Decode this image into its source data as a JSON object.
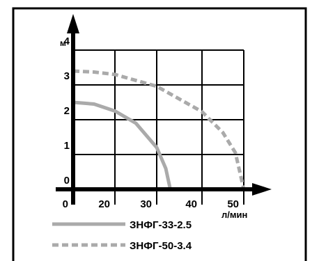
{
  "chart_data": {
    "type": "line",
    "y_label": "м",
    "x_label": "л/мин",
    "xlim": [
      0,
      50
    ],
    "ylim": [
      0,
      4
    ],
    "xticks": [
      0,
      20,
      30,
      40,
      50
    ],
    "yticks": [
      0,
      1,
      2,
      3,
      4
    ],
    "grid": true,
    "legend": "bottom-left",
    "series": [
      {
        "name": "ЗНФГ-33-2.5",
        "color": "#aaaaaa",
        "dash": "solid",
        "x": [
          0,
          10,
          20,
          25,
          30,
          32,
          33
        ],
        "values": [
          2.5,
          2.45,
          2.25,
          1.9,
          1.2,
          0.6,
          0
        ]
      },
      {
        "name": "ЗНФГ-50-3.4",
        "color": "#aaaaaa",
        "dash": "dashed",
        "x": [
          0,
          10,
          20,
          30,
          40,
          45,
          48,
          50
        ],
        "values": [
          3.4,
          3.37,
          3.3,
          2.96,
          2.23,
          1.63,
          1.05,
          0
        ]
      }
    ]
  }
}
